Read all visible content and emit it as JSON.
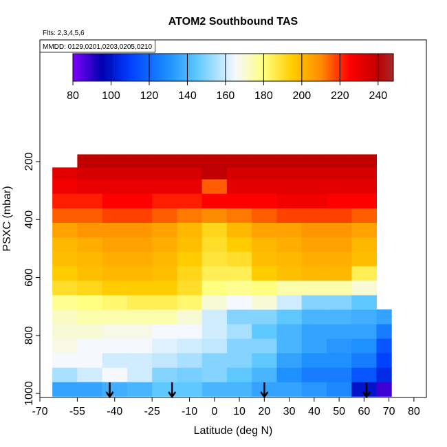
{
  "chart_data": {
    "type": "heatmap",
    "title": "ATOM2 Southbound TAS",
    "subtitle": "Flts: 2,3,4,5,6",
    "annotation": "MMDD: 0129,0201,0203,0205,0210",
    "x_label": "Latitude (deg N)",
    "y_label": "PSXC (mbar)",
    "xlim": [
      -70,
      85
    ],
    "xticks": [
      -70,
      -55,
      -40,
      -25,
      -10,
      0,
      10,
      20,
      30,
      40,
      50,
      60,
      70,
      80
    ],
    "ylim": [
      -220,
      1014
    ],
    "y_inverted": true,
    "yticks": [
      200,
      400,
      600,
      800,
      1000
    ],
    "clim": [
      80,
      248
    ],
    "cticks": [
      80,
      100,
      120,
      140,
      160,
      180,
      200,
      220,
      240
    ],
    "colormap": [
      {
        "value": 80,
        "color": "#8000ff"
      },
      {
        "value": 95,
        "color": "#0000b0"
      },
      {
        "value": 110,
        "color": "#0040ff"
      },
      {
        "value": 130,
        "color": "#1e90ff"
      },
      {
        "value": 145,
        "color": "#5fc8ff"
      },
      {
        "value": 165,
        "color": "#f5f8ff"
      },
      {
        "value": 180,
        "color": "#ffff80"
      },
      {
        "value": 195,
        "color": "#ffcc00"
      },
      {
        "value": 210,
        "color": "#ff8c00"
      },
      {
        "value": 225,
        "color": "#ff0000"
      },
      {
        "value": 240,
        "color": "#c00000"
      },
      {
        "value": 248,
        "color": "#a52a2a"
      }
    ],
    "x_edges": [
      -65,
      -55,
      -45,
      -35,
      -25,
      -15,
      -5,
      5,
      15,
      25,
      35,
      45,
      55,
      65,
      71
    ],
    "y_edges": [
      1010,
      960,
      910,
      860,
      810,
      760,
      710,
      660,
      610,
      560,
      510,
      460,
      410,
      360,
      310,
      260,
      220,
      175
    ],
    "values": [
      [
        135,
        135,
        138,
        140,
        145,
        145,
        140,
        140,
        135,
        135,
        132,
        128,
        100,
        88
      ],
      [
        155,
        160,
        165,
        160,
        150,
        148,
        150,
        145,
        140,
        130,
        125,
        125,
        115,
        105
      ],
      [
        165,
        165,
        160,
        160,
        158,
        155,
        150,
        150,
        145,
        135,
        130,
        130,
        125,
        110
      ],
      [
        168,
        165,
        165,
        165,
        162,
        160,
        158,
        150,
        150,
        140,
        135,
        132,
        130,
        115
      ],
      [
        170,
        170,
        168,
        168,
        165,
        165,
        160,
        155,
        145,
        140,
        135,
        135,
        135,
        125
      ],
      [
        172,
        175,
        175,
        175,
        175,
        170,
        160,
        150,
        150,
        145,
        140,
        140,
        138,
        135
      ],
      [
        178,
        180,
        182,
        185,
        185,
        182,
        170,
        165,
        170,
        160,
        150,
        150,
        145,
        null
      ],
      [
        190,
        192,
        195,
        195,
        195,
        190,
        180,
        178,
        180,
        175,
        175,
        175,
        170,
        null
      ],
      [
        195,
        198,
        200,
        200,
        198,
        192,
        185,
        185,
        195,
        198,
        200,
        200,
        185,
        null
      ],
      [
        198,
        200,
        202,
        202,
        200,
        195,
        188,
        190,
        198,
        200,
        202,
        202,
        198,
        null
      ],
      [
        200,
        202,
        205,
        205,
        202,
        198,
        190,
        195,
        200,
        202,
        205,
        205,
        200,
        null
      ],
      [
        205,
        208,
        208,
        208,
        205,
        200,
        192,
        200,
        205,
        205,
        208,
        208,
        205,
        null
      ],
      [
        215,
        215,
        218,
        218,
        215,
        212,
        210,
        212,
        215,
        218,
        218,
        218,
        215,
        null
      ],
      [
        222,
        222,
        225,
        225,
        222,
        222,
        225,
        225,
        225,
        228,
        228,
        225,
        225,
        null
      ],
      [
        228,
        230,
        230,
        230,
        230,
        230,
        215,
        232,
        232,
        232,
        232,
        232,
        232,
        null
      ],
      [
        232,
        235,
        235,
        235,
        235,
        235,
        240,
        235,
        235,
        235,
        235,
        235,
        235,
        null
      ],
      [
        null,
        240,
        240,
        240,
        240,
        240,
        240,
        240,
        240,
        240,
        240,
        240,
        240,
        null
      ]
    ],
    "arrows": [
      -42,
      -17,
      20,
      61
    ]
  }
}
